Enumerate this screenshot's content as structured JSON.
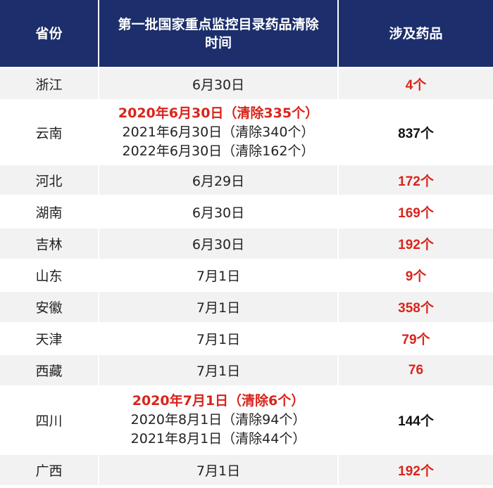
{
  "header": {
    "province": "省份",
    "clearance_time_line1": "第一批国家重点监控目录药品清除",
    "clearance_time_line2": "时间",
    "drugs_involved": "涉及药品"
  },
  "rows": [
    {
      "province": "浙江",
      "time": "6月30日",
      "count": "4个"
    },
    {
      "province": "云南",
      "time_highlight": "2020年6月30日（清除335个）",
      "time_line2": "2021年6月30日（清除340个）",
      "time_line3": "2022年6月30日（清除162个）",
      "count": "837个"
    },
    {
      "province": "河北",
      "time": "6月29日",
      "count": "172个"
    },
    {
      "province": "湖南",
      "time": "6月30日",
      "count": "169个"
    },
    {
      "province": "吉林",
      "time": "6月30日",
      "count": "192个"
    },
    {
      "province": "山东",
      "time": "7月1日",
      "count": "9个"
    },
    {
      "province": "安徽",
      "time": "7月1日",
      "count": "358个"
    },
    {
      "province": "天津",
      "time": "7月1日",
      "count": "79个"
    },
    {
      "province": "西藏",
      "time": "7月1日",
      "count": "76"
    },
    {
      "province": "四川",
      "time_highlight": "2020年7月1日（清除6个）",
      "time_line2": "2020年8月1日（清除94个）",
      "time_line3": "2021年8月1日（清除44个）",
      "count": "144个"
    },
    {
      "province": "广西",
      "time": "7月1日",
      "count": "192个"
    }
  ],
  "colors": {
    "header_bg": "#1c2e6b",
    "highlight_red": "#d9241b",
    "alt_row_bg": "#f2f2f2"
  }
}
